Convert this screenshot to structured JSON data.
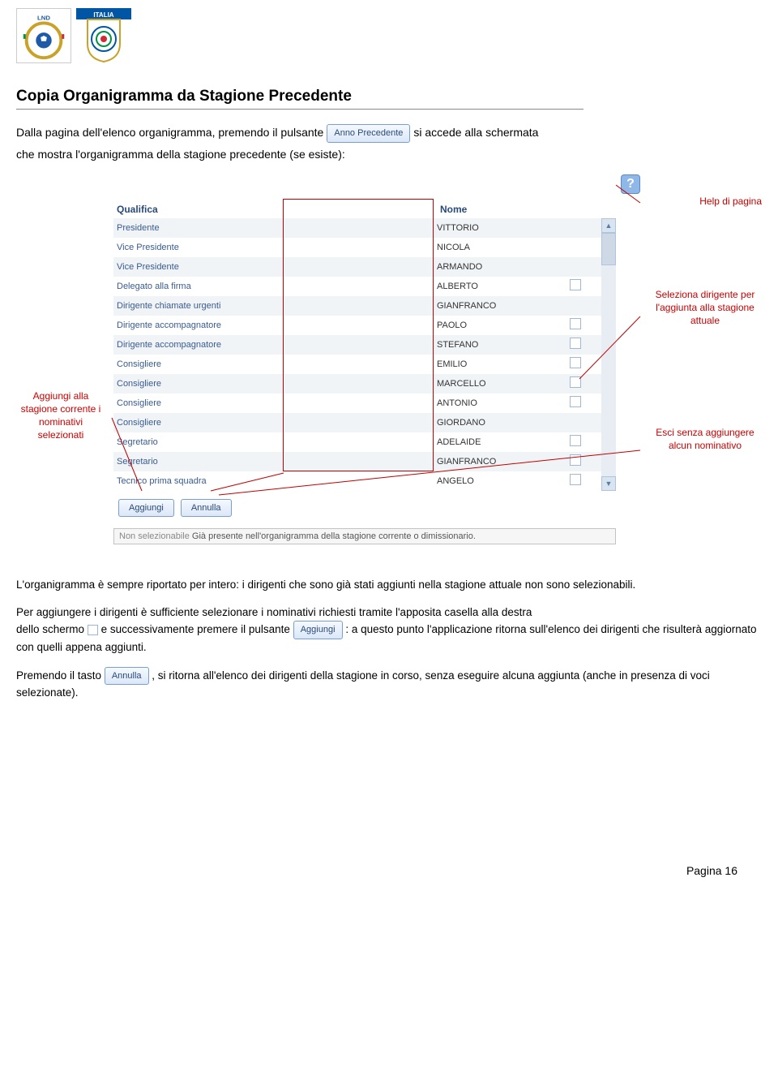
{
  "logos": {
    "lno_alt": "LND",
    "figc_alt": "ITALIA"
  },
  "title": "Copia Organigramma da Stagione Precedente",
  "intro": {
    "line1_a": "Dalla pagina dell'elenco organigramma, premendo il pulsante",
    "anno_prec_btn": "Anno Precedente",
    "line1_b": "si accede alla schermata",
    "line2": "che mostra l'organigramma della stagione precedente (se esiste):"
  },
  "callouts": {
    "left": "Aggiungi alla stagione corrente i nominativi selezionati",
    "help": "Help di pagina",
    "seleziona": "Seleziona dirigente per l'aggiunta alla stagione attuale",
    "esci": "Esci senza aggiungere alcun nominativo"
  },
  "help_icon": "?",
  "table": {
    "headers": {
      "qual": "Qualifica",
      "nome": "Nome"
    },
    "rows": [
      {
        "qual": "Presidente",
        "nome": "VITTORIO",
        "chk": false
      },
      {
        "qual": "Vice Presidente",
        "nome": "NICOLA",
        "chk": false
      },
      {
        "qual": "Vice Presidente",
        "nome": "ARMANDO",
        "chk": false
      },
      {
        "qual": "Delegato alla firma",
        "nome": "ALBERTO",
        "chk": true
      },
      {
        "qual": "Dirigente chiamate urgenti",
        "nome": "GIANFRANCO",
        "chk": false
      },
      {
        "qual": "Dirigente accompagnatore",
        "nome": "PAOLO",
        "chk": true
      },
      {
        "qual": "Dirigente accompagnatore",
        "nome": "STEFANO",
        "chk": true
      },
      {
        "qual": "Consigliere",
        "nome": "EMILIO",
        "chk": true
      },
      {
        "qual": "Consigliere",
        "nome": "MARCELLO",
        "chk": true
      },
      {
        "qual": "Consigliere",
        "nome": "ANTONIO",
        "chk": true
      },
      {
        "qual": "Consigliere",
        "nome": "GIORDANO",
        "chk": false
      },
      {
        "qual": "Segretario",
        "nome": "ADELAIDE",
        "chk": true
      },
      {
        "qual": "Segretario",
        "nome": "GIANFRANCO",
        "chk": true
      },
      {
        "qual": "Tecnico prima squadra",
        "nome": "ANGELO",
        "chk": true
      }
    ]
  },
  "buttons": {
    "aggiungi": "Aggiungi",
    "annulla": "Annulla"
  },
  "legend": {
    "label": "Non selezionabile",
    "text": "Già presente nell'organigramma della stagione corrente o dimissionario."
  },
  "body": {
    "p1": "L'organigramma è sempre riportato per intero: i dirigenti che sono già stati aggiunti nella stagione attuale non sono selezionabili.",
    "p2_a": "Per aggiungere i dirigenti è sufficiente selezionare i nominativi richiesti tramite l'apposita casella alla destra",
    "p2_b": "dello schermo",
    "p2_c": "e successivamente premere il pulsante",
    "p2_d": ":  a questo punto l'applicazione ritorna sull'elenco dei dirigenti che risulterà aggiornato con quelli appena aggiunti.",
    "p3_a": "Premendo il tasto",
    "p3_b": ", si ritorna all'elenco dei dirigenti della stagione in corso, senza eseguire alcuna aggiunta (anche in presenza di voci selezionate)."
  },
  "footer": "Pagina 16",
  "colors": {
    "red": "#cc0000",
    "header_blue": "#2a4a7a",
    "row_alt": "#f1f4f7",
    "btn_border": "#7a9fce"
  }
}
